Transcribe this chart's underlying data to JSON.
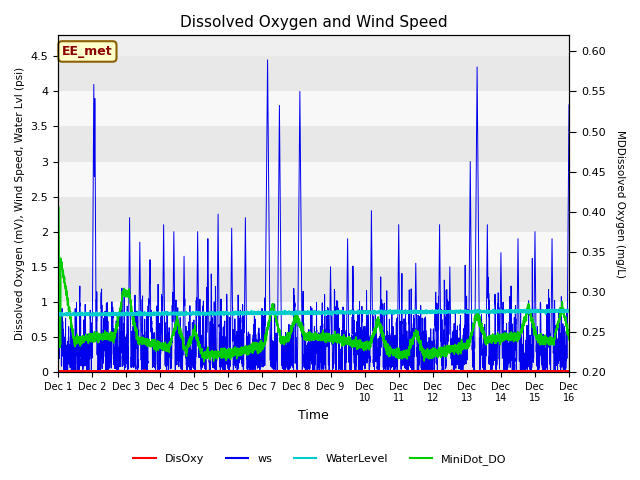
{
  "title": "Dissolved Oxygen and Wind Speed",
  "xlabel": "Time",
  "ylabel_left": "Dissolved Oxygen (mV), Wind Speed, Water Lvl (psi)",
  "ylabel_right": "MDDissolved Oxygen (mg/L)",
  "ylim_left": [
    0.0,
    4.8
  ],
  "ylim_right": [
    0.2,
    0.62
  ],
  "yticks_left": [
    0.0,
    0.5,
    1.0,
    1.5,
    2.0,
    2.5,
    3.0,
    3.5,
    4.0,
    4.5
  ],
  "yticks_right": [
    0.2,
    0.25,
    0.3,
    0.35,
    0.4,
    0.45,
    0.5,
    0.55,
    0.6
  ],
  "n_days": 15,
  "water_level": 0.84,
  "annotation_text": "EE_met",
  "colors": {
    "DisOxy": "#ff0000",
    "ws": "#0000ee",
    "WaterLevel": "#00cccc",
    "MiniDot_DO": "#00cc00"
  },
  "seed": 42,
  "n_points": 5000,
  "xtick_labels": [
    "Dec 1",
    "Dec 2",
    "Dec 3",
    "Dec 4",
    "Dec 5",
    "Dec 6",
    "Dec 7",
    "Dec 8",
    "Dec 9",
    "Dec\n10",
    "Dec\n11",
    "Dec\n12",
    "Dec\n13",
    "Dec\n14",
    "Dec\n15",
    "Dec 16"
  ],
  "background_bands": [
    [
      0.0,
      0.5,
      "#e8e8e8"
    ],
    [
      0.5,
      1.0,
      "#f8f8f8"
    ],
    [
      1.0,
      1.5,
      "#e8e8e8"
    ],
    [
      1.5,
      2.0,
      "#f8f8f8"
    ],
    [
      2.0,
      2.5,
      "#e8e8e8"
    ],
    [
      2.5,
      3.0,
      "#f8f8f8"
    ],
    [
      3.0,
      3.5,
      "#e8e8e8"
    ],
    [
      3.5,
      4.0,
      "#f8f8f8"
    ],
    [
      4.0,
      4.5,
      "#e8e8e8"
    ]
  ]
}
